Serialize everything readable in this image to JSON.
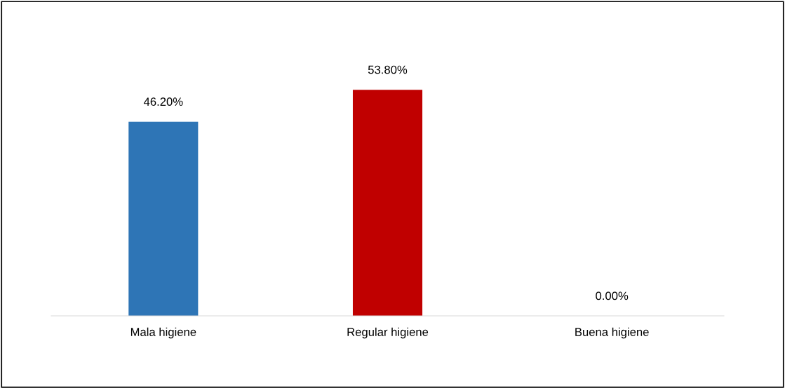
{
  "chart_data": {
    "type": "bar",
    "categories": [
      "Mala higiene",
      "Regular higiene",
      "Buena higiene"
    ],
    "values": [
      46.2,
      53.8,
      0.0
    ],
    "colors": [
      "#2e75b6",
      "#c00000",
      "#a5a5a5"
    ],
    "value_labels": [
      "46.20%",
      "53.80%",
      "0.00%"
    ],
    "grid": false,
    "legend": false
  }
}
